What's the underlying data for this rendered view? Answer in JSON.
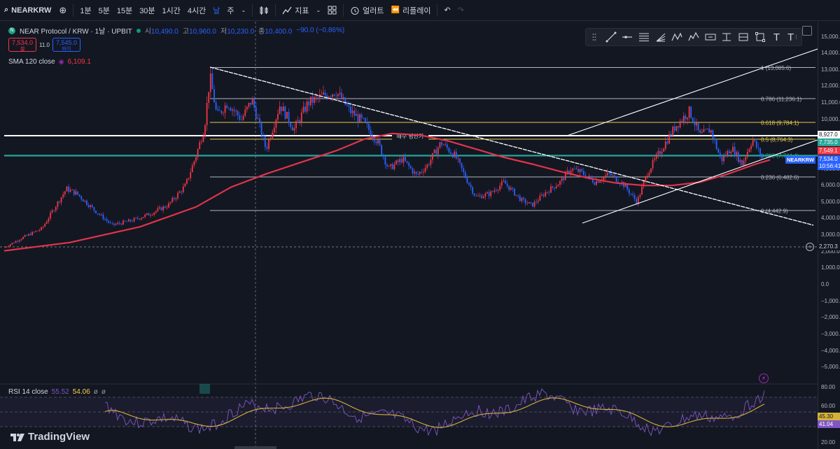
{
  "toolbar": {
    "symbol": "NEARKRW",
    "intervals": [
      "1분",
      "5분",
      "15분",
      "30분",
      "1시간",
      "4시간",
      "날",
      "주"
    ],
    "active_interval": "날",
    "indicators_label": "지표",
    "alert_label": "얼러트",
    "replay_label": "리플레이"
  },
  "legend": {
    "title": "NEAR Protocol / KRW · 1날 · UPBIT",
    "open_label": "시",
    "open": "10,490.0",
    "high_label": "고",
    "high": "10,960.0",
    "low_label": "저",
    "low": "10,230.0",
    "close_label": "종",
    "close": "10,400.0",
    "change": "−90.0 (−0.86%)",
    "sell_price": "7,534.0",
    "sell_label": "셀",
    "spread": "11.0",
    "buy_price": "7,545.0",
    "buy_label": "바이"
  },
  "sma": {
    "label": "SMA 120 close",
    "value": "6,109.1"
  },
  "rsi": {
    "label": "RSI 14 close",
    "v1": "55.52",
    "v2": "54.06",
    "v3": "ø",
    "v4": "ø"
  },
  "fib": [
    {
      "label": "1 (13,085.6)",
      "color": "#b2b5be"
    },
    {
      "label": "0.786 (11,236.1)",
      "color": "#b2b5be"
    },
    {
      "label": "0.618 (9,784.1)",
      "color": "#e6c84a"
    },
    {
      "label": "0.5 (8,764.3)",
      "color": "#e6c84a"
    },
    {
      "label": "0.382 (7,744.4)",
      "color": "#26a69a"
    },
    {
      "label": "0.236 (6,482.6)",
      "color": "#b2b5be"
    },
    {
      "label": "0 (4,442.9)",
      "color": "#b2b5be"
    }
  ],
  "annotation": "매수 평단가",
  "price_axis": [
    "15,000.0",
    "14,000.0",
    "13,000.0",
    "12,000.0",
    "11,000.0",
    "10,000.0",
    "9,000.0",
    "8,000.0",
    "7,000.0",
    "6,000.0",
    "5,000.0",
    "4,000.0",
    "3,000.0",
    "2,000.0",
    "1,000.0",
    "0.0",
    "−1,000.0",
    "−2,000.0",
    "−3,000.0",
    "−4,000.0",
    "−5,000.0"
  ],
  "rsi_axis": [
    "80.00",
    "60.00",
    "40.00",
    "20.00"
  ],
  "tags": {
    "line_white": "8,927.0",
    "green": "7,735.0",
    "red": "7,549.1",
    "current": "7,534.0",
    "symbol": "NEARKRW",
    "countdown": "10:56:41",
    "dashed": "2,270.3",
    "rsi_yellow": "45.30",
    "rsi_purple": "41.04"
  },
  "brand": "TradingView",
  "colors": {
    "up": "#f23645",
    "down": "#2962ff",
    "sma": "#e0344a",
    "bg": "#131722"
  }
}
